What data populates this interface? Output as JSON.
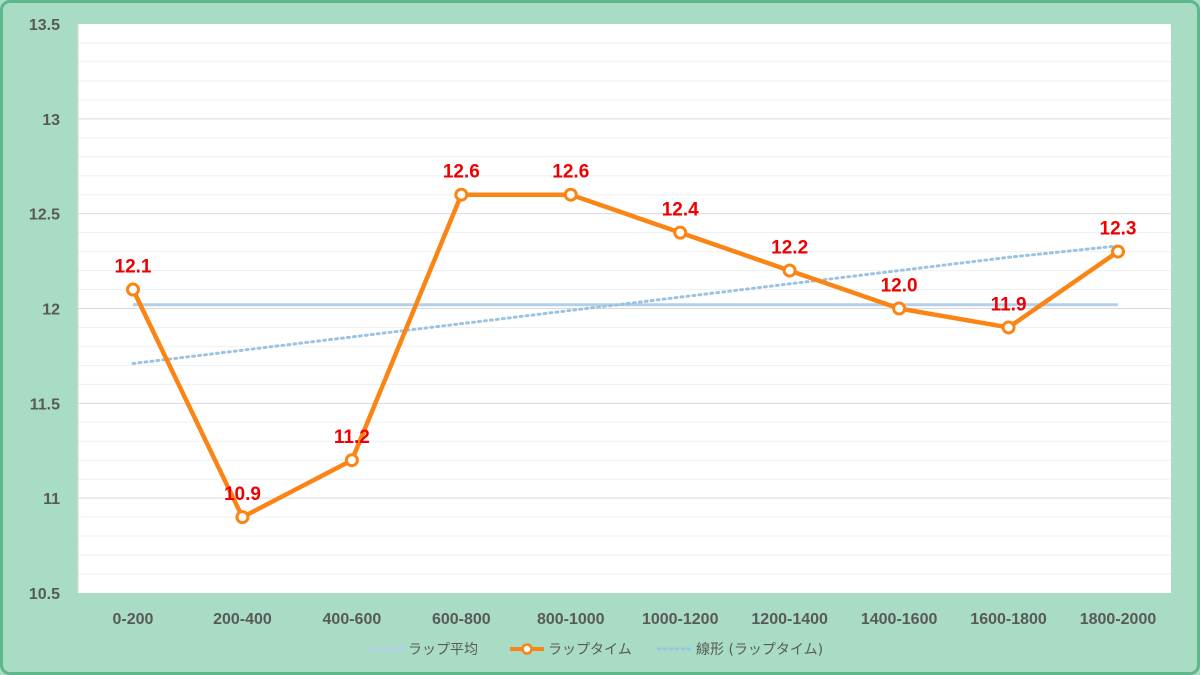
{
  "colors": {
    "background": "#a8dcc4",
    "frame_border": "#5cb88a",
    "plot_background": "#ffffff",
    "average_line": "#b4cfe8",
    "lap_line": "#fa8514",
    "trend_line": "#9dc3e2",
    "data_label": "#ee0000",
    "tick_text": "#595959",
    "grid_major": "#d9d9d9",
    "grid_minor": "#eef0f2"
  },
  "chart_data": {
    "type": "line",
    "title": "",
    "xlabel": "",
    "ylabel": "",
    "categories": [
      "0-200",
      "200-400",
      "400-600",
      "600-800",
      "800-1000",
      "1000-1200",
      "1200-1400",
      "1400-1600",
      "1600-1800",
      "1800-2000"
    ],
    "ylim": [
      10.5,
      13.5
    ],
    "y_ticks": [
      10.5,
      11,
      11.5,
      12,
      12.5,
      13,
      13.5
    ],
    "y_tick_labels": [
      "10.5",
      "11",
      "11.5",
      "12",
      "12.5",
      "13",
      "13.5"
    ],
    "grid": true,
    "minor_grid_step": 0.1,
    "legend_position": "bottom",
    "series": [
      {
        "name": "ラップ平均",
        "style": "solid",
        "values": [
          12.02,
          12.02,
          12.02,
          12.02,
          12.02,
          12.02,
          12.02,
          12.02,
          12.02,
          12.02
        ]
      },
      {
        "name": "ラップタイム",
        "style": "solid-markers",
        "values": [
          12.1,
          10.9,
          11.2,
          12.6,
          12.6,
          12.4,
          12.2,
          12.0,
          11.9,
          12.3
        ],
        "data_labels": [
          "12.1",
          "10.9",
          "11.2",
          "12.6",
          "12.6",
          "12.4",
          "12.2",
          "12.0",
          "11.9",
          "12.3"
        ]
      },
      {
        "name": "線形 (ラップタイム)",
        "style": "dotted",
        "values": [
          11.71,
          11.78,
          11.85,
          11.92,
          11.99,
          12.06,
          12.13,
          12.2,
          12.27,
          12.33
        ]
      }
    ]
  }
}
